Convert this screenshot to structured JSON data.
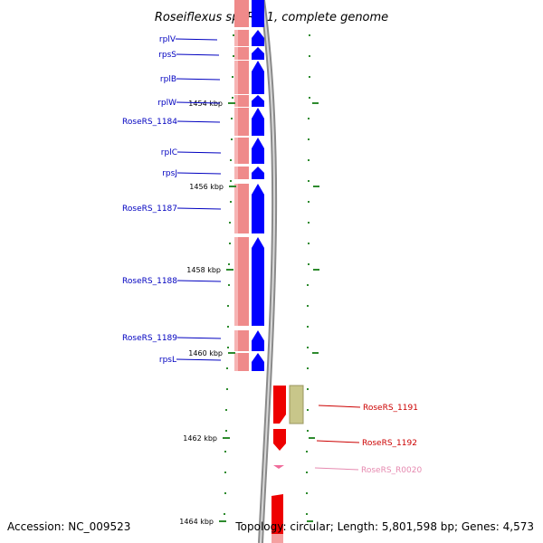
{
  "title": "Roseiflexus sp. RS-1, complete genome",
  "footer": {
    "accession": "Accession: NC_009523",
    "topology": "Topology: circular; Length: 5,801,598 bp; Genes: 4,573"
  },
  "colors": {
    "label_blue": "#0000c0",
    "label_red": "#cc0000",
    "label_pink": "#e68ab0",
    "gene_blue": "#0000ff",
    "gene_red": "#ee0000",
    "gene_pink": "#f06b9a",
    "pseudo_olive": "#c8c68a",
    "band_pink": "#ef8a8a",
    "dot_green": "#2e8b2e",
    "backbone_gray": "#8a8a8a"
  },
  "ticks": [
    {
      "label": "1454 kbp"
    },
    {
      "label": "1456 kbp"
    },
    {
      "label": "1458 kbp"
    },
    {
      "label": "1460 kbp"
    },
    {
      "label": "1462 kbp"
    },
    {
      "label": "1464 kbp"
    }
  ],
  "left_genes": [
    {
      "name": "rplV"
    },
    {
      "name": "rpsS"
    },
    {
      "name": "rplB"
    },
    {
      "name": "rplW"
    },
    {
      "name": "RoseRS_1184"
    },
    {
      "name": "rplC"
    },
    {
      "name": "rpsJ"
    },
    {
      "name": "RoseRS_1187"
    },
    {
      "name": "RoseRS_1188"
    },
    {
      "name": "RoseRS_1189"
    },
    {
      "name": "rpsL"
    }
  ],
  "right_genes": [
    {
      "name": "RoseRS_1191"
    },
    {
      "name": "RoseRS_1192"
    },
    {
      "name": "RoseRS_R0020"
    }
  ]
}
